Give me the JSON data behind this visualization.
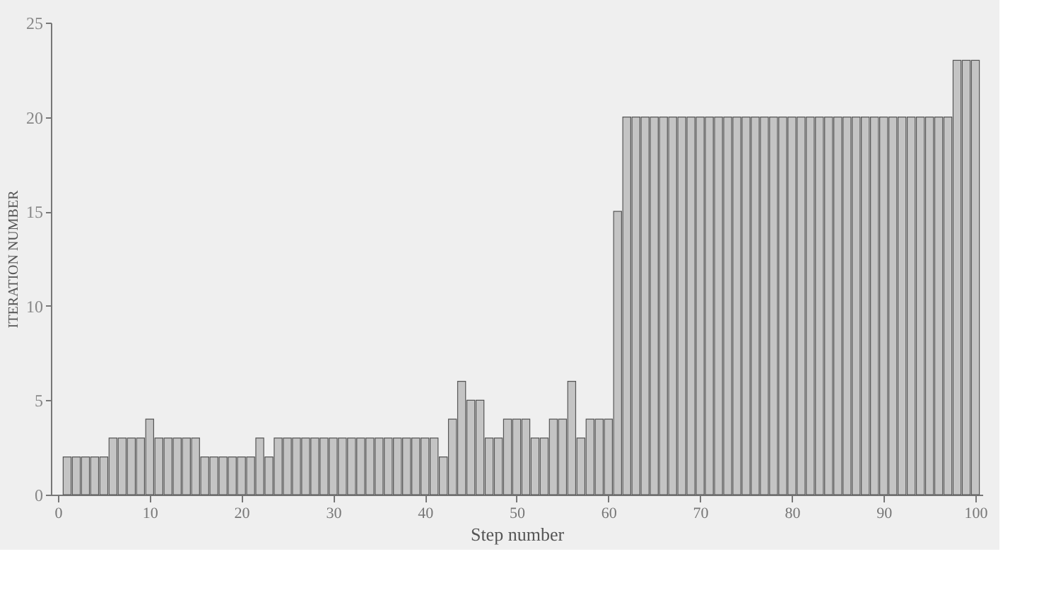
{
  "chart_data": {
    "type": "bar",
    "xlabel": "Step number",
    "ylabel": "ITERATION NUMBER",
    "x": [
      1,
      2,
      3,
      4,
      5,
      6,
      7,
      8,
      9,
      10,
      11,
      12,
      13,
      14,
      15,
      16,
      17,
      18,
      19,
      20,
      21,
      22,
      23,
      24,
      25,
      26,
      27,
      28,
      29,
      30,
      31,
      32,
      33,
      34,
      35,
      36,
      37,
      38,
      39,
      40,
      41,
      42,
      43,
      44,
      45,
      46,
      47,
      48,
      49,
      50,
      51,
      52,
      53,
      54,
      55,
      56,
      57,
      58,
      59,
      60,
      61,
      62,
      63,
      64,
      65,
      66,
      67,
      68,
      69,
      70,
      71,
      72,
      73,
      74,
      75,
      76,
      77,
      78,
      79,
      80,
      81,
      82,
      83,
      84,
      85,
      86,
      87,
      88,
      89,
      90,
      91,
      92,
      93,
      94,
      95,
      96,
      97,
      98,
      99,
      100
    ],
    "values": [
      2,
      2,
      2,
      2,
      2,
      3,
      3,
      3,
      3,
      4,
      3,
      3,
      3,
      3,
      3,
      2,
      2,
      2,
      2,
      2,
      2,
      3,
      2,
      3,
      3,
      3,
      3,
      3,
      3,
      3,
      3,
      3,
      3,
      3,
      3,
      3,
      3,
      3,
      3,
      3,
      3,
      2,
      4,
      6,
      5,
      5,
      3,
      3,
      4,
      4,
      4,
      3,
      3,
      4,
      4,
      6,
      3,
      4,
      4,
      4,
      15,
      20,
      20,
      20,
      20,
      20,
      20,
      20,
      20,
      20,
      20,
      20,
      20,
      20,
      20,
      20,
      20,
      20,
      20,
      20,
      20,
      20,
      20,
      20,
      20,
      20,
      20,
      20,
      20,
      20,
      20,
      20,
      20,
      20,
      20,
      20,
      20,
      23,
      23,
      23
    ],
    "color": "#c4c4c4",
    "xlim": [
      0,
      100
    ],
    "xticks": [
      0,
      10,
      20,
      30,
      40,
      50,
      60,
      70,
      80,
      90,
      100
    ],
    "ylim": [
      0,
      25
    ],
    "yticks": [
      0,
      5,
      10,
      15,
      20,
      25
    ],
    "grid": false
  }
}
